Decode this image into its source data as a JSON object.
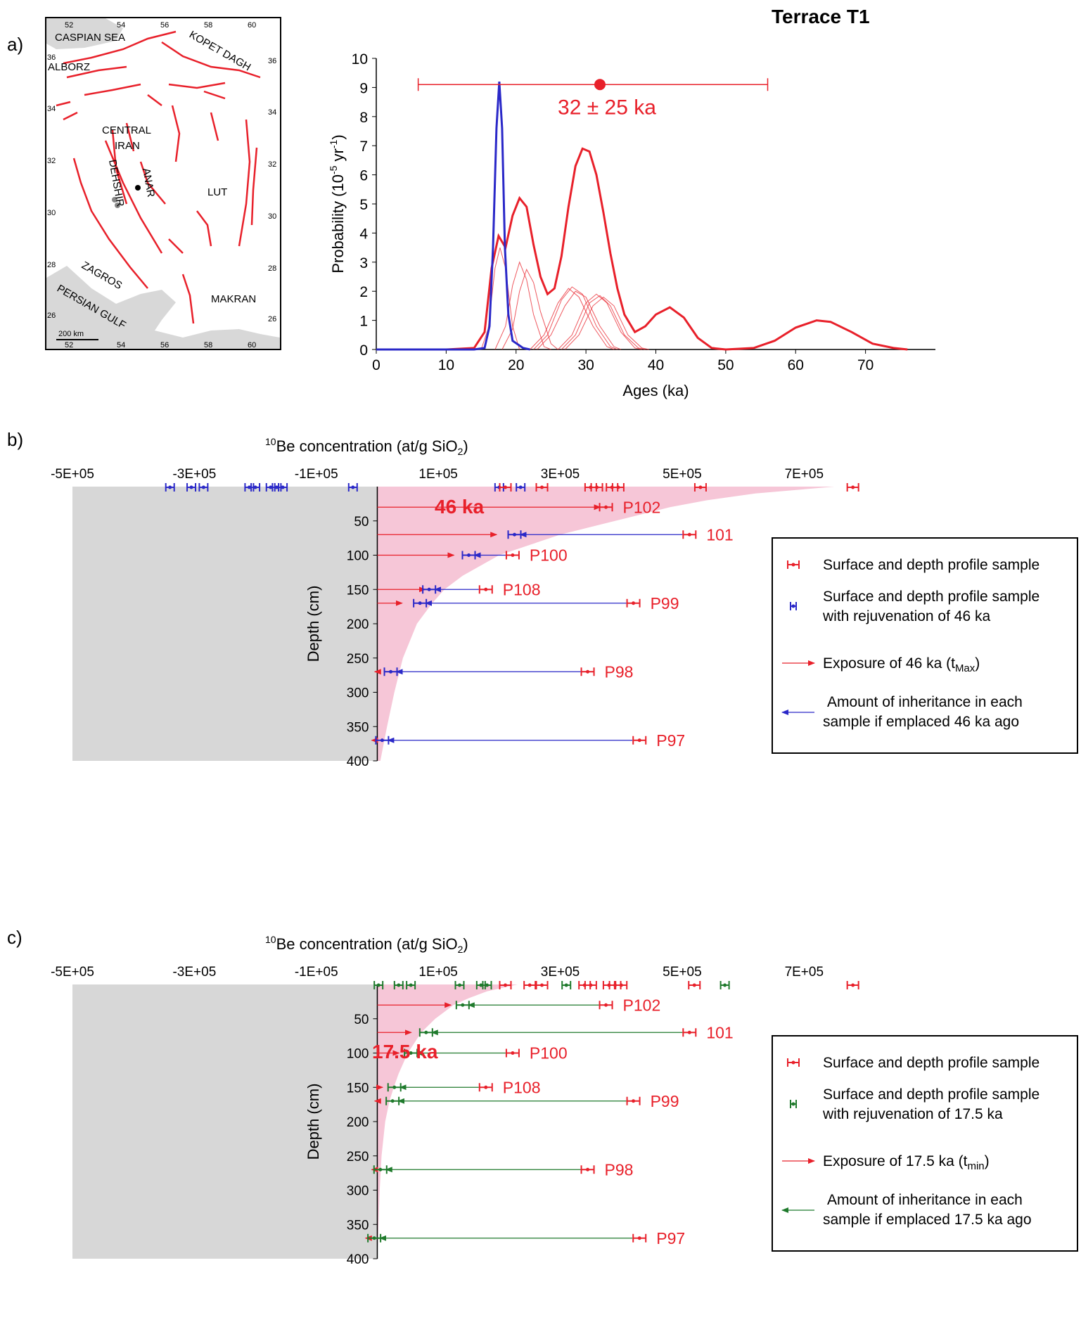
{
  "colors": {
    "red": "#e8202a",
    "blue": "#2a28c8",
    "green": "#1f7a2c",
    "pink": "#f6c6d7",
    "gray": "#d7d7d7",
    "land": "#d8d8d8"
  },
  "panels": {
    "a": "a)",
    "b": "b)",
    "c": "c)"
  },
  "map": {
    "labels": {
      "caspian": "CASPIAN SEA",
      "alborz": "ALBORZ",
      "kopet": "KOPET DAGH",
      "central": "CENTRAL",
      "iran": "IRAN",
      "dehshir": "DEHSHIR",
      "anar": "ANAR",
      "lut": "LUT",
      "zagros": "ZAGROS",
      "gulf": "PERSIAN GULF",
      "makran": "MAKRAN",
      "scale": "200 km"
    },
    "lon_ticks": [
      "52",
      "54",
      "56",
      "58",
      "60"
    ],
    "lat_left": [
      "36",
      "34",
      "32",
      "30",
      "28",
      "26"
    ],
    "lat_right": [
      "36",
      "34",
      "32",
      "30",
      "28",
      "26"
    ]
  },
  "chart_data": [
    {
      "type": "line",
      "title": "Terrace T1",
      "xlabel": "Ages (ka)",
      "ylabel": "Probability (10-5 yr-1)",
      "ylabel_parts": {
        "main": "Probability (10",
        "sup": "-5",
        "mid": " yr",
        "sup2": "-1",
        "end": ")"
      },
      "xlim": [
        0,
        80
      ],
      "ylim": [
        0,
        10
      ],
      "xticks": [
        "0",
        "10",
        "20",
        "30",
        "40",
        "50",
        "60",
        "70"
      ],
      "yticks": [
        "0",
        "1",
        "2",
        "3",
        "4",
        "5",
        "6",
        "7",
        "8",
        "9",
        "10"
      ],
      "annotation": {
        "text": "32 ± 25 ka",
        "center": 32,
        "low": 6,
        "high": 56,
        "y": 9.1
      },
      "series": [
        {
          "style": "summed",
          "color": "#e8202a",
          "points": [
            [
              0,
              0
            ],
            [
              10,
              0
            ],
            [
              14,
              0.05
            ],
            [
              15.5,
              0.6
            ],
            [
              16.5,
              2.8
            ],
            [
              17.5,
              3.9
            ],
            [
              18.5,
              3.5
            ],
            [
              19.5,
              4.6
            ],
            [
              20.5,
              5.2
            ],
            [
              21.5,
              4.9
            ],
            [
              22.5,
              3.6
            ],
            [
              23.5,
              2.5
            ],
            [
              24.5,
              1.9
            ],
            [
              25.5,
              2.1
            ],
            [
              26.5,
              3.2
            ],
            [
              27.5,
              4.9
            ],
            [
              28.5,
              6.3
            ],
            [
              29.5,
              6.9
            ],
            [
              30.5,
              6.8
            ],
            [
              31.5,
              6.0
            ],
            [
              32.5,
              4.7
            ],
            [
              33.5,
              3.3
            ],
            [
              34.5,
              2.1
            ],
            [
              35.5,
              1.2
            ],
            [
              37,
              0.6
            ],
            [
              38.5,
              0.8
            ],
            [
              40,
              1.2
            ],
            [
              42,
              1.45
            ],
            [
              44,
              1.1
            ],
            [
              46,
              0.4
            ],
            [
              48,
              0.05
            ],
            [
              50,
              0
            ],
            [
              54,
              0.05
            ],
            [
              57,
              0.3
            ],
            [
              60,
              0.75
            ],
            [
              63,
              1.0
            ],
            [
              65,
              0.95
            ],
            [
              68,
              0.6
            ],
            [
              71,
              0.2
            ],
            [
              74,
              0.05
            ],
            [
              76,
              0
            ]
          ]
        },
        {
          "style": "sample",
          "color": "#e8202a",
          "points": [
            [
              15,
              0
            ],
            [
              16,
              0.7
            ],
            [
              17,
              2.8
            ],
            [
              17.7,
              3.5
            ],
            [
              18.5,
              2.8
            ],
            [
              19.5,
              0.8
            ],
            [
              20.5,
              0
            ]
          ]
        },
        {
          "style": "sample",
          "color": "#e8202a",
          "points": [
            [
              17,
              0
            ],
            [
              18.5,
              0.8
            ],
            [
              19.5,
              2.2
            ],
            [
              20.5,
              3.0
            ],
            [
              21.5,
              2.4
            ],
            [
              22.5,
              1.2
            ],
            [
              24,
              0.1
            ],
            [
              25,
              0
            ]
          ]
        },
        {
          "style": "sample",
          "color": "#e8202a",
          "points": [
            [
              18,
              0
            ],
            [
              19.5,
              0.7
            ],
            [
              20.5,
              2.0
            ],
            [
              21.5,
              2.75
            ],
            [
              22.5,
              2.3
            ],
            [
              23.5,
              1.3
            ],
            [
              25,
              0.2
            ],
            [
              26,
              0
            ]
          ]
        },
        {
          "style": "sample",
          "color": "#e8202a",
          "points": [
            [
              22,
              0
            ],
            [
              24,
              0.5
            ],
            [
              26,
              1.6
            ],
            [
              27.5,
              2.1
            ],
            [
              29,
              1.8
            ],
            [
              31,
              0.8
            ],
            [
              33,
              0.1
            ],
            [
              34,
              0
            ]
          ]
        },
        {
          "style": "sample",
          "color": "#e8202a",
          "points": [
            [
              22.5,
              0
            ],
            [
              24.5,
              0.5
            ],
            [
              26.5,
              1.7
            ],
            [
              28,
              2.15
            ],
            [
              29.5,
              1.9
            ],
            [
              31.5,
              0.8
            ],
            [
              33.5,
              0.1
            ],
            [
              34.5,
              0
            ]
          ]
        },
        {
          "style": "sample",
          "color": "#e8202a",
          "points": [
            [
              23,
              0
            ],
            [
              25,
              0.5
            ],
            [
              27,
              1.5
            ],
            [
              28.5,
              2.0
            ],
            [
              30,
              1.8
            ],
            [
              32,
              0.8
            ],
            [
              34,
              0.1
            ],
            [
              35,
              0
            ]
          ]
        },
        {
          "style": "sample",
          "color": "#e8202a",
          "points": [
            [
              26,
              0
            ],
            [
              28,
              0.5
            ],
            [
              30,
              1.6
            ],
            [
              31.5,
              1.9
            ],
            [
              33,
              1.6
            ],
            [
              35,
              0.6
            ],
            [
              37,
              0.05
            ],
            [
              38,
              0
            ]
          ]
        },
        {
          "style": "sample",
          "color": "#e8202a",
          "points": [
            [
              26.5,
              0
            ],
            [
              28.5,
              0.5
            ],
            [
              30.5,
              1.6
            ],
            [
              32,
              1.85
            ],
            [
              33.5,
              1.5
            ],
            [
              35.5,
              0.5
            ],
            [
              37.5,
              0.05
            ],
            [
              38.5,
              0
            ]
          ]
        },
        {
          "style": "sample",
          "color": "#e8202a",
          "points": [
            [
              27,
              0
            ],
            [
              29,
              0.5
            ],
            [
              31,
              1.5
            ],
            [
              32.5,
              1.8
            ],
            [
              34,
              1.5
            ],
            [
              36,
              0.5
            ],
            [
              38,
              0.05
            ],
            [
              39,
              0
            ]
          ]
        },
        {
          "style": "blue",
          "color": "#2a28c8",
          "points": [
            [
              0,
              0
            ],
            [
              14,
              0
            ],
            [
              15.5,
              0.05
            ],
            [
              16.2,
              0.8
            ],
            [
              16.7,
              3.5
            ],
            [
              17.2,
              7.6
            ],
            [
              17.6,
              9.2
            ],
            [
              18.0,
              7.6
            ],
            [
              18.4,
              3.5
            ],
            [
              18.9,
              1.2
            ],
            [
              19.5,
              0.3
            ],
            [
              21,
              0.05
            ],
            [
              22,
              0
            ]
          ]
        }
      ]
    },
    {
      "type": "scatter",
      "panel": "b",
      "title": "10Be concentration (at/g SiO2)",
      "title_parts": {
        "sup": "10",
        "main": "Be concentration (at/g SiO",
        "sub": "2",
        ")": ")"
      },
      "ylabel": "Depth (cm)",
      "xlim": [
        -500000,
        800000
      ],
      "ylim": [
        400,
        0
      ],
      "xticks": [
        "-5E+05",
        "-3E+05",
        "-1E+05",
        "1E+05",
        "3E+05",
        "5E+05",
        "7E+05"
      ],
      "yticks": [
        "50",
        "100",
        "150",
        "200",
        "250",
        "300",
        "350",
        "400"
      ],
      "age_label": "46 ka",
      "top_blue_x": [
        -340000,
        -305000,
        -285000,
        -210000,
        -200000,
        -175000,
        -165000,
        -155000,
        -40000,
        200000,
        235000
      ],
      "top_red_x": [
        210000,
        270000,
        350000,
        360000,
        385000,
        395000,
        530000,
        780000
      ],
      "profile": [
        [
          0,
          750000
        ],
        [
          10,
          620000
        ],
        [
          20,
          540000
        ],
        [
          30,
          480000
        ],
        [
          50,
          390000
        ],
        [
          70,
          300000
        ],
        [
          100,
          200000
        ],
        [
          130,
          140000
        ],
        [
          150,
          110000
        ],
        [
          170,
          90000
        ],
        [
          200,
          65000
        ],
        [
          250,
          42000
        ],
        [
          300,
          28000
        ],
        [
          350,
          16000
        ],
        [
          400,
          5000
        ]
      ],
      "samples": [
        {
          "label": "P102",
          "depth": 30,
          "measured": 375000,
          "model": 375000,
          "blue": null
        },
        {
          "label": "101",
          "depth": 70,
          "measured": 512000,
          "model": 205000,
          "blue": 225000
        },
        {
          "label": "P100",
          "depth": 100,
          "measured": 222000,
          "model": 135000,
          "blue": 150000
        },
        {
          "label": "P108",
          "depth": 150,
          "measured": 178000,
          "model": 88000,
          "blue": 85000
        },
        {
          "label": "P99",
          "depth": 170,
          "measured": 420000,
          "model": 50000,
          "blue": 70000
        },
        {
          "label": "P98",
          "depth": 270,
          "measured": 345000,
          "model": 5000,
          "blue": 22000
        },
        {
          "label": "P97",
          "depth": 370,
          "measured": 430000,
          "model": 0,
          "blue": 8000
        }
      ],
      "legend": {
        "item1": "Surface and depth profile  sample",
        "item2a": "Surface and depth profile sample",
        "item2b": "with rejuvenation of 46 ka",
        "item3": "Exposure of 46 ka (t",
        "item3sub": "Max",
        "item3end": ")",
        "item4a": "Amount of inheritance in each",
        "item4b": "sample if emplaced 46 ka ago"
      }
    },
    {
      "type": "scatter",
      "panel": "c",
      "title": "10Be concentration (at/g SiO2)",
      "title_parts": {
        "sup": "10",
        "main": "Be concentration (at/g SiO",
        "sub": "2",
        ")": ")"
      },
      "ylabel": "Depth (cm)",
      "xlim": [
        -500000,
        800000
      ],
      "ylim": [
        400,
        0
      ],
      "xticks": [
        "-5E+05",
        "-3E+05",
        "-1E+05",
        "1E+05",
        "3E+05",
        "5E+05",
        "7E+05"
      ],
      "yticks": [
        "50",
        "100",
        "150",
        "200",
        "250",
        "300",
        "350",
        "400"
      ],
      "age_label": "17.5 ka",
      "top_green_x": [
        2000,
        35000,
        55000,
        135000,
        170000,
        180000,
        310000,
        570000
      ],
      "top_red_x": [
        210000,
        250000,
        270000,
        340000,
        350000,
        380000,
        390000,
        400000,
        520000,
        780000
      ],
      "profile": [
        [
          0,
          230000
        ],
        [
          10,
          180000
        ],
        [
          20,
          150000
        ],
        [
          30,
          125000
        ],
        [
          50,
          95000
        ],
        [
          70,
          72000
        ],
        [
          100,
          50000
        ],
        [
          130,
          35000
        ],
        [
          150,
          27000
        ],
        [
          170,
          20000
        ],
        [
          200,
          13000
        ],
        [
          250,
          7000
        ],
        [
          300,
          4000
        ],
        [
          350,
          2000
        ],
        [
          400,
          0
        ]
      ],
      "samples": [
        {
          "label": "P102",
          "depth": 30,
          "measured": 375000,
          "model": 130000,
          "blue": 140000
        },
        {
          "label": "101",
          "depth": 70,
          "measured": 512000,
          "model": 65000,
          "blue": 80000
        },
        {
          "label": "P100",
          "depth": 100,
          "measured": 222000,
          "model": 45000,
          "blue": 55000
        },
        {
          "label": "P108",
          "depth": 150,
          "measured": 178000,
          "model": 18000,
          "blue": 28000
        },
        {
          "label": "P99",
          "depth": 170,
          "measured": 420000,
          "model": 5000,
          "blue": 25000
        },
        {
          "label": "P98",
          "depth": 270,
          "measured": 345000,
          "model": 0,
          "blue": 5000
        },
        {
          "label": "P97",
          "depth": 370,
          "measured": 430000,
          "model": -10000,
          "blue": -5000
        }
      ],
      "legend": {
        "item1": "Surface and depth profile  sample",
        "item2a": "Surface and depth profile sample",
        "item2b": "with rejuvenation of 17.5 ka",
        "item3": "Exposure of 17.5 ka (t",
        "item3sub": "min",
        "item3end": ")",
        "item4a": "Amount of inheritance in each",
        "item4b": "sample if emplaced 17.5 ka ago"
      }
    }
  ]
}
